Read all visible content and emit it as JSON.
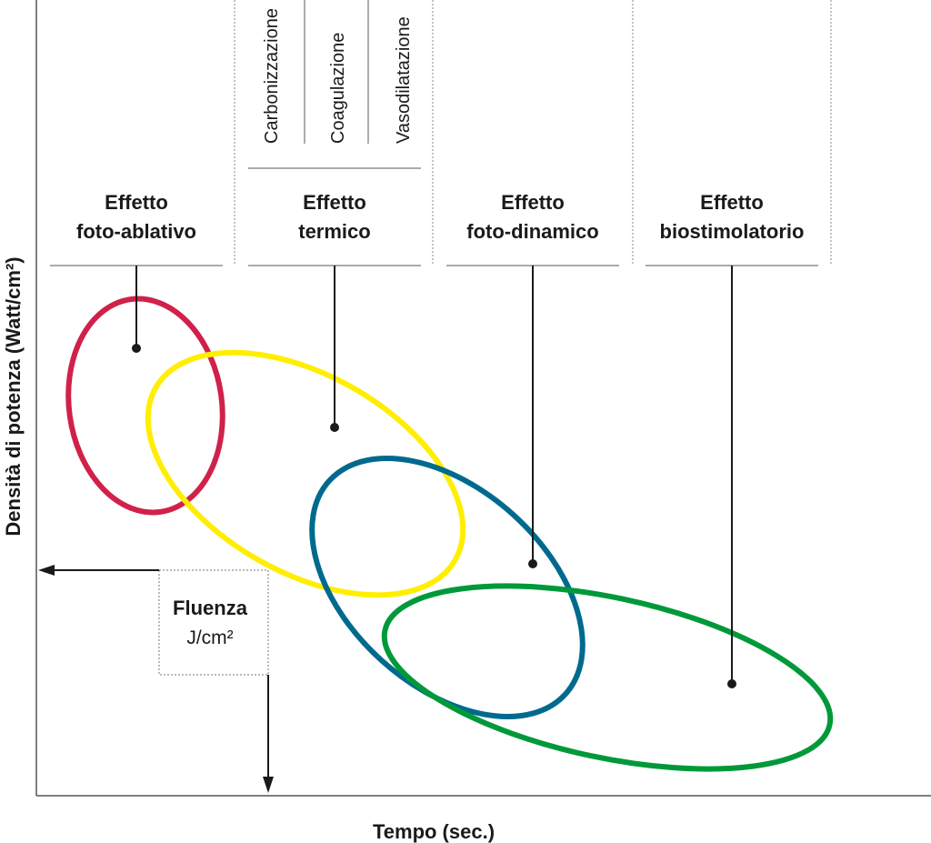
{
  "y_axis_label": "Densità di potenza (Watt/cm²)",
  "x_axis_label": "Tempo (sec.)",
  "effects": [
    {
      "lines": [
        "Effetto",
        "foto-ablativo"
      ]
    },
    {
      "lines": [
        "Effetto",
        "termico"
      ]
    },
    {
      "lines": [
        "Effetto",
        "foto-dinamico"
      ]
    },
    {
      "lines": [
        "Effetto",
        "biostimolatorio"
      ]
    }
  ],
  "thermal_subtypes": [
    "Carbonizzazione",
    "Coagulazione",
    "Vasodilatazione"
  ],
  "fluence": {
    "title": "Fluenza",
    "unit": "J/cm²"
  }
}
